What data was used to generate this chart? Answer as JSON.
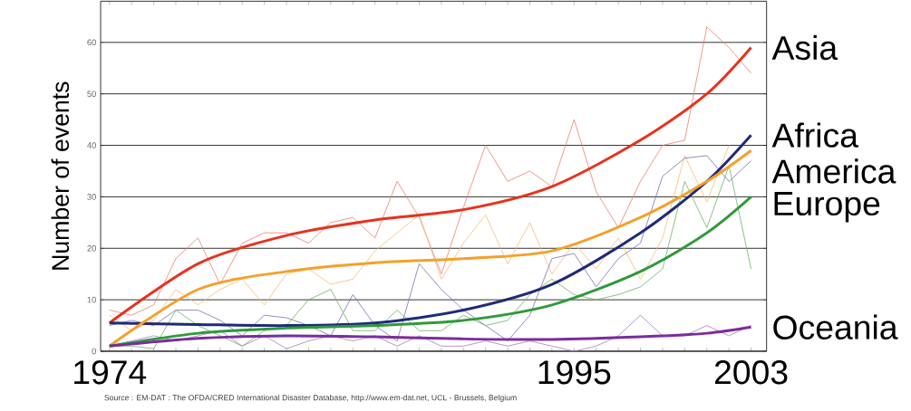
{
  "chart_data": {
    "type": "line",
    "ylabel": "Number of events",
    "annotations": [
      "Source : EM-DAT : The OFDA/CRED International Disaster Database, http://www.em-dat.net, UCL - Brussels, Belgium"
    ],
    "x": [
      1974,
      1975,
      1976,
      1977,
      1978,
      1979,
      1980,
      1981,
      1982,
      1983,
      1984,
      1985,
      1986,
      1987,
      1988,
      1989,
      1990,
      1991,
      1992,
      1993,
      1994,
      1995,
      1996,
      1997,
      1998,
      1999,
      2000,
      2001,
      2002,
      2003
    ],
    "xlim": [
      1973.6,
      2003.7
    ],
    "ylim": [
      0,
      68
    ],
    "xticks": [
      1974,
      {
        "value": 1975,
        "label": null
      },
      {
        "value": 1976,
        "label": null
      },
      {
        "value": 1977,
        "label": null
      },
      {
        "value": 1978,
        "label": null
      },
      {
        "value": 1979,
        "label": null
      },
      {
        "value": 1980,
        "label": null
      },
      {
        "value": 1981,
        "label": null
      },
      {
        "value": 1982,
        "label": null
      },
      {
        "value": 1983,
        "label": null
      },
      {
        "value": 1984,
        "label": null
      },
      {
        "value": 1985,
        "label": null
      },
      {
        "value": 1986,
        "label": null
      },
      {
        "value": 1987,
        "label": null
      },
      {
        "value": 1988,
        "label": null
      },
      {
        "value": 1989,
        "label": null
      },
      {
        "value": 1990,
        "label": null
      },
      {
        "value": 1991,
        "label": null
      },
      {
        "value": 1992,
        "label": null
      },
      {
        "value": 1993,
        "label": null
      },
      {
        "value": 1994,
        "label": null
      },
      1995,
      {
        "value": 1996,
        "label": null
      },
      {
        "value": 1997,
        "label": null
      },
      {
        "value": 1998,
        "label": null
      },
      {
        "value": 1999,
        "label": null
      },
      {
        "value": 2000,
        "label": null
      },
      {
        "value": 2001,
        "label": null
      },
      {
        "value": 2002,
        "label": null
      },
      2003
    ],
    "yticks": [
      0,
      10,
      20,
      30,
      40,
      50,
      60
    ],
    "grid": "y",
    "series": [
      {
        "color": "#e8806e",
        "values": [
          8,
          7,
          9,
          18,
          22,
          13,
          21,
          23,
          23,
          21,
          25,
          26,
          22,
          33,
          26,
          15,
          28,
          40,
          33,
          35,
          32,
          45,
          31,
          24,
          33,
          40,
          41,
          63,
          59,
          54
        ]
      },
      {
        "color": "#f5bb78",
        "values": [
          7,
          4,
          6,
          12,
          9,
          12,
          14,
          9,
          15,
          16,
          13,
          14,
          19.5,
          23,
          26.5,
          14,
          21,
          26.5,
          17,
          25,
          15,
          21,
          16,
          22,
          14,
          22,
          38,
          29,
          40,
          null
        ]
      },
      {
        "color": "#7a70b4",
        "values": [
          5,
          6,
          5,
          8,
          8,
          6,
          3,
          7,
          6.5,
          5,
          3,
          11,
          5,
          2,
          17,
          12,
          8,
          5,
          2,
          7,
          18,
          19,
          12.5,
          18,
          21,
          34,
          37.5,
          38,
          33,
          37
        ]
      },
      {
        "color": "#70b066",
        "values": [
          1,
          1,
          0.5,
          8,
          5,
          3,
          1,
          4,
          5,
          10,
          12,
          4,
          4,
          8,
          4,
          4,
          7,
          5,
          6,
          11,
          14,
          11,
          10,
          11,
          12.5,
          16,
          33,
          24,
          36,
          16
        ]
      },
      {
        "color": "#a47cc4",
        "values": [
          1,
          2,
          3,
          2,
          3,
          4,
          1,
          3,
          0.5,
          2,
          3,
          2,
          3,
          1,
          3,
          1,
          1,
          2,
          1,
          2,
          1,
          0,
          1,
          3,
          7,
          3,
          3,
          5,
          3,
          5
        ]
      },
      {
        "name": "Asia",
        "color": "#e8321e",
        "x": [
          1974,
          1978,
          1982,
          1986,
          1990,
          1994,
          1998,
          2001,
          2003
        ],
        "values": [
          5.5,
          17,
          22.5,
          25.5,
          27.5,
          32,
          41,
          50,
          59
        ]
      },
      {
        "name": "Africa",
        "color": "#1f2a78",
        "x": [
          1974,
          1978,
          1982,
          1986,
          1990,
          1994,
          1998,
          2001,
          2003
        ],
        "values": [
          5.5,
          5.2,
          5,
          5.5,
          8,
          13,
          23,
          33,
          42
        ]
      },
      {
        "name": "America",
        "color": "#f5a02a",
        "x": [
          1974,
          1978,
          1982,
          1986,
          1990,
          1994,
          1998,
          2001,
          2003
        ],
        "values": [
          1,
          12,
          15.5,
          17.2,
          18,
          19.5,
          26,
          33,
          39
        ]
      },
      {
        "name": "Europe",
        "color": "#2e9a3a",
        "x": [
          1974,
          1978,
          1982,
          1986,
          1990,
          1994,
          1998,
          2001,
          2003
        ],
        "values": [
          1,
          3.5,
          4.5,
          5,
          6,
          9,
          15.5,
          23,
          30
        ]
      },
      {
        "name": "Oceania",
        "color": "#7b2c9c",
        "x": [
          1974,
          1978,
          1982,
          1986,
          1990,
          1994,
          1998,
          2001,
          2003
        ],
        "values": [
          1,
          2.5,
          3,
          2.8,
          2.4,
          2.3,
          2.8,
          3.5,
          4.7
        ]
      }
    ]
  }
}
